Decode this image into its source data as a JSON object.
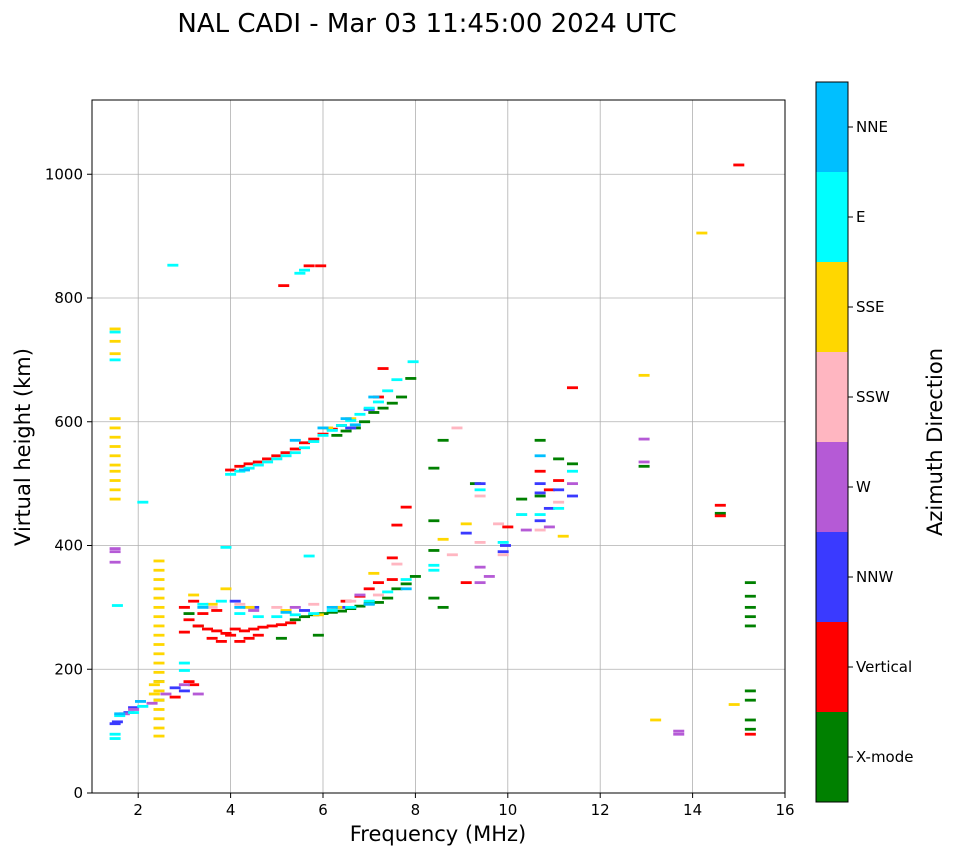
{
  "chart_data": {
    "type": "scatter",
    "title": "NAL CADI - Mar 03 11:45:00 2024 UTC",
    "xlabel": "Frequency (MHz)",
    "ylabel": "Virtual height (km)",
    "xlim": [
      1,
      16
    ],
    "ylim": [
      0,
      1120
    ],
    "xticks": [
      2,
      4,
      6,
      8,
      10,
      12,
      14,
      16
    ],
    "yticks": [
      0,
      200,
      400,
      600,
      800,
      1000
    ],
    "grid": true,
    "colorbar": {
      "title": "Azimuth Direction",
      "categories": [
        "X-mode",
        "Vertical",
        "NNW",
        "W",
        "SSW",
        "SSE",
        "E",
        "NNE"
      ],
      "colors": [
        "#008000",
        "#ff0000",
        "#3a3aff",
        "#b55ad6",
        "#ffb6c1",
        "#ffd700",
        "#00ffff",
        "#00bfff"
      ]
    },
    "series": [
      {
        "name": "X-mode",
        "points": [
          [
            8.4,
            440
          ],
          [
            8.4,
            392
          ],
          [
            8.6,
            570
          ],
          [
            8.4,
            525
          ],
          [
            8.6,
            300
          ],
          [
            8.4,
            315
          ],
          [
            10.7,
            570
          ],
          [
            10.7,
            480
          ],
          [
            11.4,
            532
          ],
          [
            11.1,
            540
          ],
          [
            12.95,
            528
          ],
          [
            14.6,
            452
          ],
          [
            15.25,
            318
          ],
          [
            15.25,
            300
          ],
          [
            15.25,
            285
          ],
          [
            15.25,
            270
          ],
          [
            15.25,
            340
          ],
          [
            15.25,
            165
          ],
          [
            15.25,
            150
          ],
          [
            15.25,
            118
          ],
          [
            15.25,
            103
          ],
          [
            7.8,
            338
          ],
          [
            7.6,
            330
          ],
          [
            7.4,
            315
          ],
          [
            7.2,
            308
          ],
          [
            7.0,
            306
          ],
          [
            6.8,
            302
          ],
          [
            6.6,
            298
          ],
          [
            6.4,
            294
          ],
          [
            6.2,
            292
          ],
          [
            6.0,
            290
          ],
          [
            5.8,
            288
          ],
          [
            5.6,
            285
          ],
          [
            5.4,
            280
          ],
          [
            7.9,
            670
          ],
          [
            7.7,
            640
          ],
          [
            7.5,
            630
          ],
          [
            7.3,
            622
          ],
          [
            7.1,
            615
          ],
          [
            6.9,
            600
          ],
          [
            6.7,
            590
          ],
          [
            6.5,
            585
          ],
          [
            6.3,
            578
          ],
          [
            8.0,
            350
          ],
          [
            9.3,
            500
          ],
          [
            10.3,
            475
          ],
          [
            2.45,
            180
          ],
          [
            2.45,
            150
          ],
          [
            3.1,
            290
          ],
          [
            3.3,
            270
          ],
          [
            5.1,
            250
          ],
          [
            5.9,
            255
          ]
        ]
      },
      {
        "name": "Vertical",
        "points": [
          [
            3.1,
            280
          ],
          [
            3.3,
            270
          ],
          [
            3.5,
            265
          ],
          [
            3.7,
            262
          ],
          [
            3.9,
            258
          ],
          [
            4.1,
            265
          ],
          [
            4.3,
            262
          ],
          [
            4.5,
            265
          ],
          [
            4.7,
            268
          ],
          [
            4.9,
            270
          ],
          [
            5.1,
            272
          ],
          [
            5.3,
            275
          ],
          [
            3.0,
            300
          ],
          [
            3.2,
            310
          ],
          [
            3.6,
            250
          ],
          [
            3.8,
            245
          ],
          [
            4.0,
            255
          ],
          [
            4.2,
            245
          ],
          [
            4.4,
            250
          ],
          [
            4.6,
            255
          ],
          [
            3.4,
            290
          ],
          [
            3.0,
            260
          ],
          [
            3.7,
            295
          ],
          [
            4.0,
            522
          ],
          [
            4.2,
            528
          ],
          [
            4.4,
            532
          ],
          [
            4.6,
            535
          ],
          [
            4.8,
            540
          ],
          [
            5.0,
            545
          ],
          [
            5.2,
            550
          ],
          [
            5.4,
            556
          ],
          [
            5.6,
            566
          ],
          [
            5.8,
            572
          ],
          [
            6.0,
            580
          ],
          [
            6.2,
            588
          ],
          [
            6.4,
            594
          ],
          [
            5.15,
            820
          ],
          [
            5.7,
            852
          ],
          [
            5.95,
            852
          ],
          [
            7.3,
            686
          ],
          [
            7.2,
            640
          ],
          [
            7.8,
            462
          ],
          [
            9.1,
            340
          ],
          [
            10.0,
            430
          ],
          [
            11.1,
            505
          ],
          [
            11.4,
            655
          ],
          [
            14.6,
            465
          ],
          [
            14.6,
            448
          ],
          [
            15.0,
            1015
          ],
          [
            15.25,
            95
          ],
          [
            6.8,
            318
          ],
          [
            7.0,
            330
          ],
          [
            7.2,
            340
          ],
          [
            7.5,
            380
          ],
          [
            7.6,
            433
          ],
          [
            2.8,
            155
          ],
          [
            3.1,
            180
          ],
          [
            3.2,
            175
          ],
          [
            10.9,
            490
          ],
          [
            10.7,
            520
          ],
          [
            7.5,
            345
          ],
          [
            6.5,
            310
          ]
        ]
      },
      {
        "name": "NNW",
        "points": [
          [
            9.95,
            400
          ],
          [
            9.9,
            390
          ],
          [
            10.7,
            500
          ],
          [
            10.7,
            485
          ],
          [
            10.9,
            460
          ],
          [
            11.1,
            490
          ],
          [
            11.4,
            480
          ],
          [
            9.4,
            500
          ],
          [
            9.1,
            420
          ],
          [
            4.1,
            310
          ],
          [
            4.5,
            300
          ],
          [
            5.6,
            295
          ],
          [
            2.8,
            170
          ],
          [
            3.0,
            165
          ],
          [
            1.55,
            115
          ],
          [
            1.5,
            112
          ],
          [
            1.8,
            130
          ],
          [
            1.9,
            138
          ],
          [
            6.4,
            300
          ],
          [
            6.6,
            590
          ],
          [
            7.0,
            620
          ],
          [
            10.7,
            440
          ]
        ]
      },
      {
        "name": "W",
        "points": [
          [
            12.95,
            572
          ],
          [
            12.95,
            535
          ],
          [
            13.7,
            100
          ],
          [
            13.7,
            95
          ],
          [
            9.4,
            365
          ],
          [
            9.6,
            350
          ],
          [
            9.4,
            340
          ],
          [
            10.4,
            425
          ],
          [
            10.9,
            430
          ],
          [
            11.4,
            500
          ],
          [
            1.5,
            395
          ],
          [
            1.5,
            390
          ],
          [
            1.5,
            373
          ],
          [
            3.3,
            160
          ],
          [
            3.0,
            175
          ],
          [
            2.6,
            160
          ],
          [
            1.7,
            128
          ],
          [
            2.3,
            145
          ],
          [
            4.5,
            295
          ],
          [
            5.4,
            300
          ],
          [
            6.8,
            320
          ],
          [
            1.9,
            135
          ]
        ]
      },
      {
        "name": "SSW",
        "points": [
          [
            8.9,
            590
          ],
          [
            9.4,
            480
          ],
          [
            9.4,
            405
          ],
          [
            9.8,
            435
          ],
          [
            10.3,
            450
          ],
          [
            11.1,
            470
          ],
          [
            9.9,
            385
          ],
          [
            7.6,
            370
          ],
          [
            6.6,
            310
          ],
          [
            5.8,
            305
          ],
          [
            5.0,
            300
          ],
          [
            4.2,
            305
          ],
          [
            3.6,
            300
          ],
          [
            8.8,
            385
          ],
          [
            10.7,
            425
          ],
          [
            7.2,
            320
          ]
        ]
      },
      {
        "name": "SSE",
        "points": [
          [
            1.5,
            750
          ],
          [
            1.5,
            730
          ],
          [
            1.5,
            710
          ],
          [
            1.5,
            605
          ],
          [
            1.5,
            590
          ],
          [
            1.5,
            575
          ],
          [
            1.5,
            560
          ],
          [
            1.5,
            545
          ],
          [
            1.5,
            530
          ],
          [
            1.5,
            520
          ],
          [
            1.5,
            505
          ],
          [
            1.5,
            490
          ],
          [
            1.5,
            475
          ],
          [
            2.45,
            375
          ],
          [
            2.45,
            360
          ],
          [
            2.45,
            345
          ],
          [
            2.45,
            330
          ],
          [
            2.45,
            315
          ],
          [
            2.45,
            300
          ],
          [
            2.45,
            285
          ],
          [
            2.45,
            270
          ],
          [
            2.45,
            255
          ],
          [
            2.45,
            240
          ],
          [
            2.45,
            225
          ],
          [
            2.45,
            210
          ],
          [
            2.45,
            195
          ],
          [
            2.45,
            180
          ],
          [
            2.45,
            165
          ],
          [
            2.45,
            150
          ],
          [
            2.45,
            135
          ],
          [
            2.45,
            120
          ],
          [
            2.45,
            105
          ],
          [
            2.45,
            92
          ],
          [
            2.35,
            175
          ],
          [
            2.35,
            160
          ],
          [
            12.95,
            675
          ],
          [
            14.2,
            905
          ],
          [
            13.2,
            118
          ],
          [
            14.9,
            143
          ],
          [
            8.6,
            410
          ],
          [
            9.1,
            435
          ],
          [
            11.2,
            415
          ],
          [
            6.1,
            590
          ],
          [
            6.6,
            605
          ],
          [
            3.2,
            320
          ],
          [
            3.6,
            305
          ],
          [
            4.4,
            300
          ],
          [
            5.2,
            295
          ],
          [
            5.9,
            288
          ],
          [
            6.3,
            300
          ],
          [
            7.1,
            355
          ],
          [
            3.9,
            330
          ]
        ]
      },
      {
        "name": "E",
        "points": [
          [
            1.5,
            745
          ],
          [
            1.5,
            700
          ],
          [
            1.55,
            303
          ],
          [
            1.5,
            95
          ],
          [
            1.5,
            88
          ],
          [
            2.75,
            853
          ],
          [
            5.5,
            840
          ],
          [
            5.6,
            845
          ],
          [
            7.95,
            697
          ],
          [
            7.6,
            668
          ],
          [
            7.4,
            650
          ],
          [
            7.2,
            632
          ],
          [
            7.0,
            622
          ],
          [
            6.8,
            612
          ],
          [
            6.6,
            602
          ],
          [
            6.4,
            594
          ],
          [
            6.2,
            586
          ],
          [
            6.0,
            578
          ],
          [
            5.8,
            568
          ],
          [
            5.6,
            558
          ],
          [
            5.4,
            550
          ],
          [
            5.2,
            545
          ],
          [
            5.0,
            540
          ],
          [
            4.8,
            535
          ],
          [
            4.6,
            530
          ],
          [
            4.4,
            525
          ],
          [
            4.2,
            520
          ],
          [
            4.0,
            515
          ],
          [
            3.9,
            397
          ],
          [
            5.7,
            383
          ],
          [
            8.4,
            368
          ],
          [
            8.4,
            360
          ],
          [
            9.4,
            490
          ],
          [
            9.9,
            405
          ],
          [
            10.3,
            450
          ],
          [
            10.7,
            450
          ],
          [
            11.1,
            460
          ],
          [
            11.4,
            520
          ],
          [
            2.1,
            470
          ],
          [
            1.6,
            125
          ],
          [
            1.9,
            130
          ],
          [
            2.1,
            140
          ],
          [
            3.4,
            305
          ],
          [
            3.8,
            310
          ],
          [
            4.2,
            290
          ],
          [
            4.6,
            285
          ],
          [
            5.0,
            285
          ],
          [
            5.4,
            288
          ],
          [
            5.8,
            290
          ],
          [
            6.2,
            295
          ],
          [
            6.6,
            300
          ],
          [
            7.0,
            310
          ],
          [
            7.4,
            325
          ],
          [
            7.8,
            345
          ],
          [
            3.0,
            210
          ],
          [
            3.0,
            198
          ]
        ]
      },
      {
        "name": "NNE",
        "points": [
          [
            6.7,
            595
          ],
          [
            6.5,
            605
          ],
          [
            5.4,
            570
          ],
          [
            4.3,
            522
          ],
          [
            6.0,
            590
          ],
          [
            7.1,
            640
          ],
          [
            7.0,
            305
          ],
          [
            6.2,
            300
          ],
          [
            5.2,
            292
          ],
          [
            10.7,
            545
          ],
          [
            1.6,
            128
          ],
          [
            2.05,
            148
          ],
          [
            3.4,
            300
          ],
          [
            4.2,
            300
          ],
          [
            7.8,
            330
          ]
        ]
      }
    ]
  }
}
